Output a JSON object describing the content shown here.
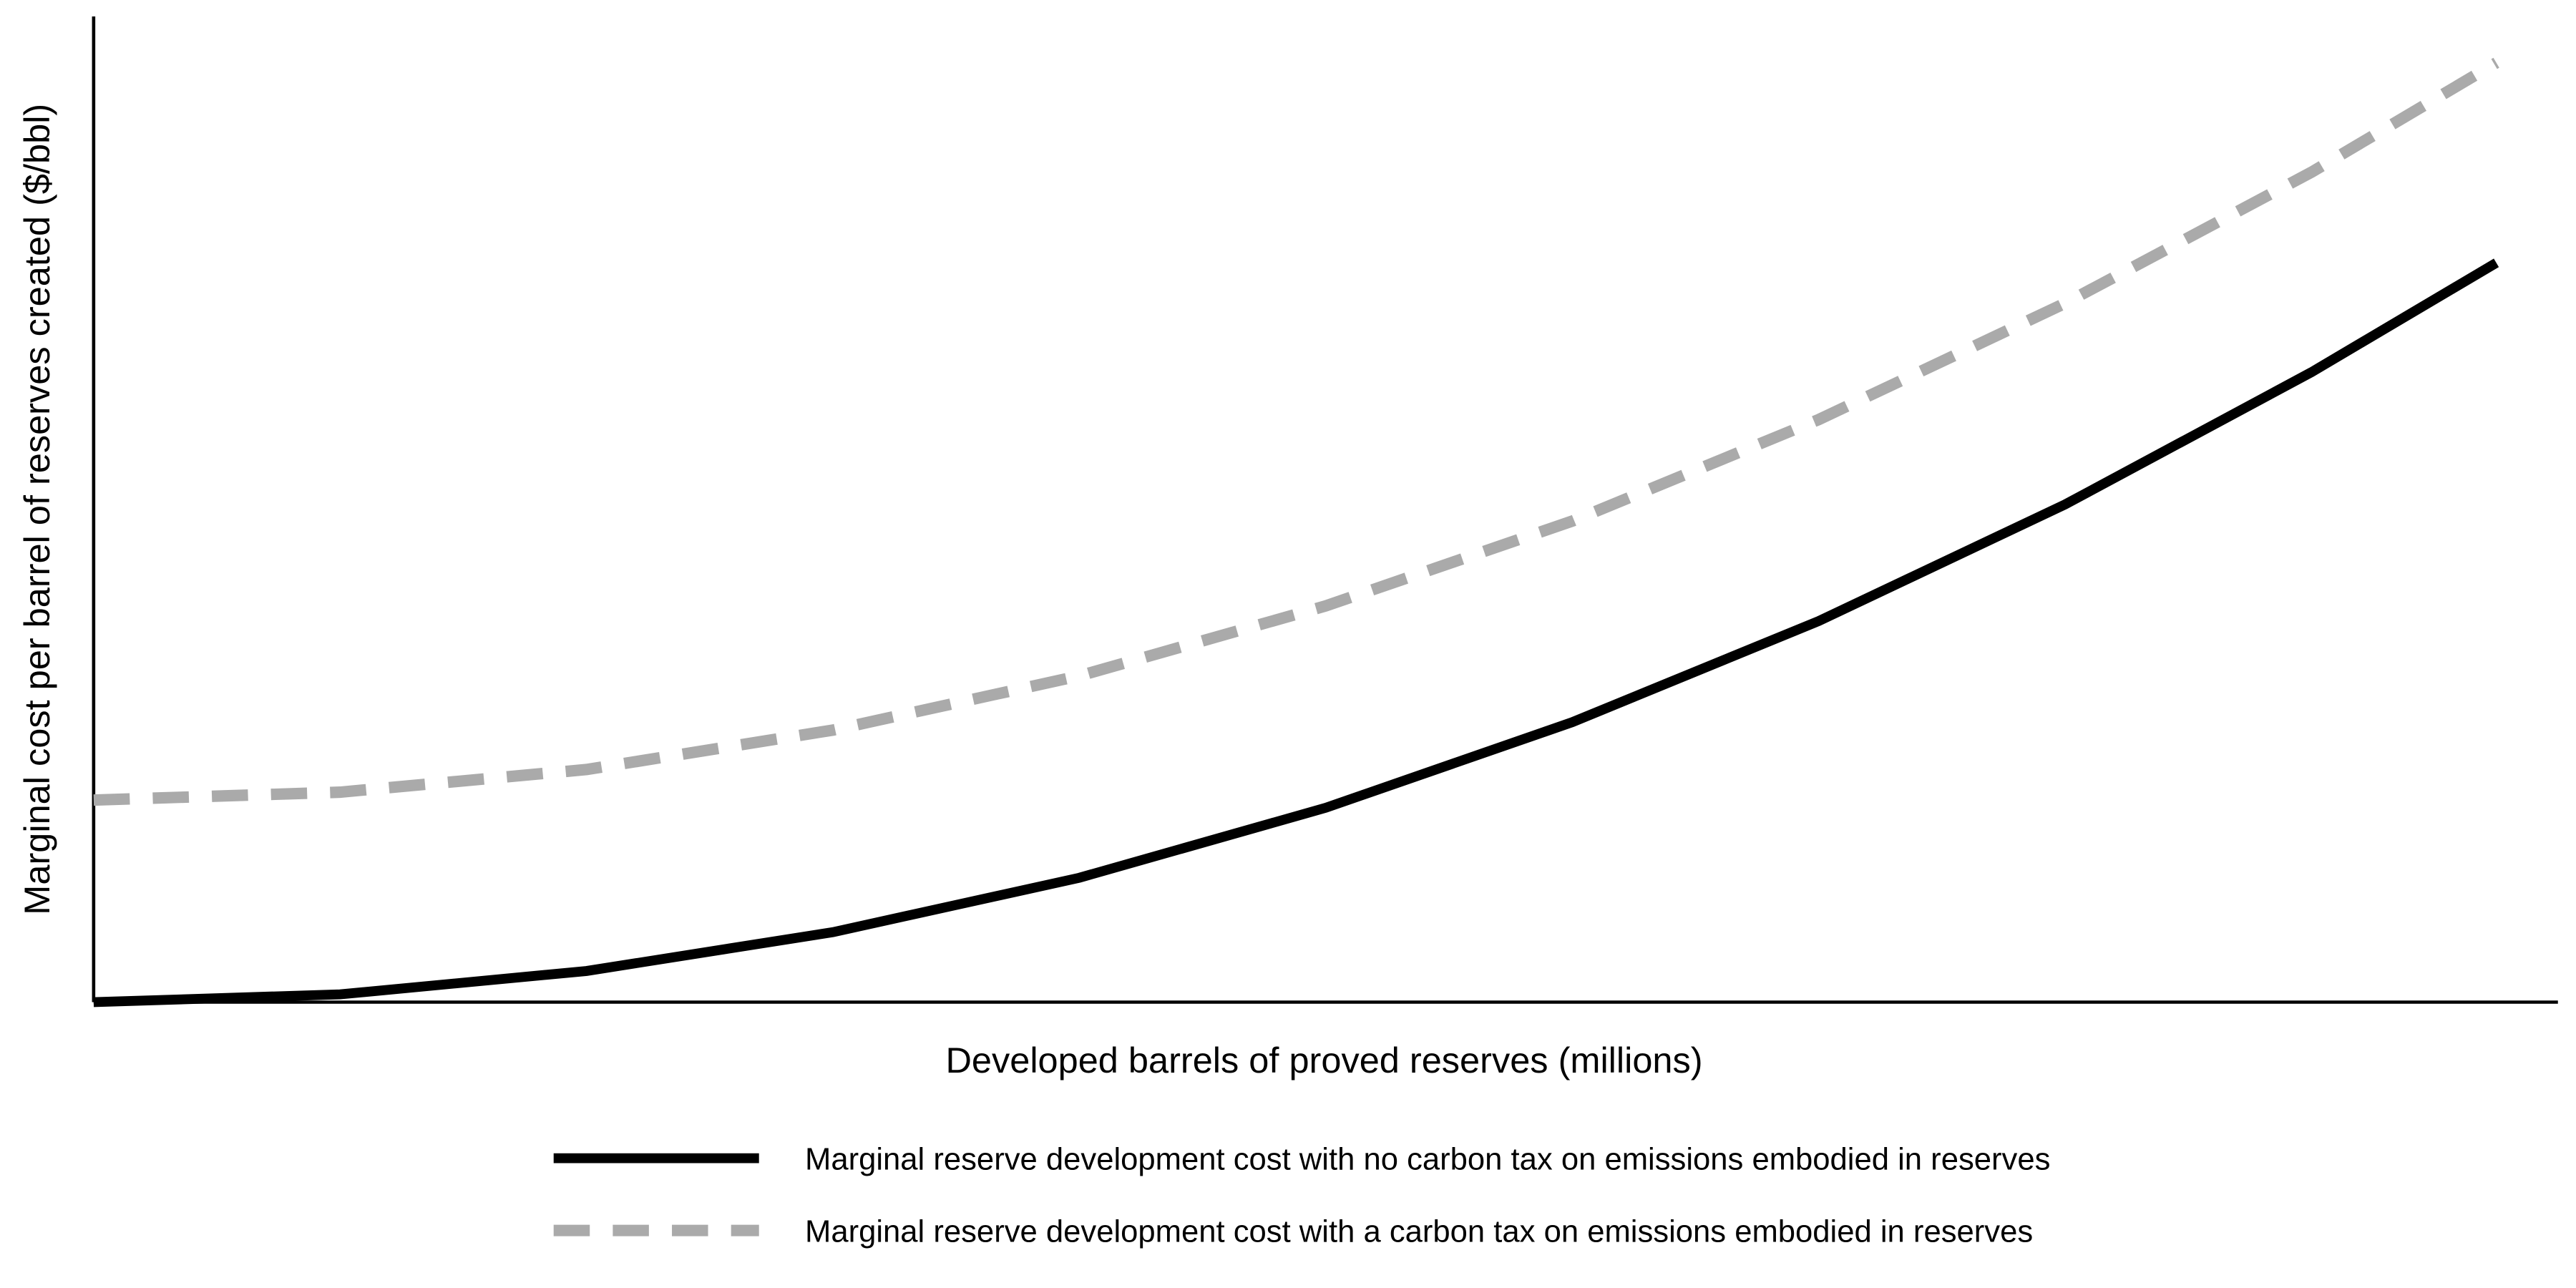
{
  "chart_data": {
    "type": "line",
    "x_label": "Developed barrels of proved reserves (millions)",
    "y_label": "Marginal cost per barrel of reserves created ($/bbl)",
    "x": [
      0,
      10,
      20,
      30,
      40,
      50,
      60,
      70,
      80,
      90,
      97.5
    ],
    "series": [
      {
        "name": "Marginal reserve development cost with no carbon tax on emissions embodied in reserves",
        "color": "#000000",
        "dash": false,
        "values": [
          0,
          0.79,
          3.16,
          7.1,
          12.62,
          19.72,
          28.4,
          38.66,
          50.49,
          63.91,
          75
        ]
      },
      {
        "name": "Marginal reserve development cost with a carbon tax on emissions embodied in reserves",
        "color": "#aaaaaa",
        "dash": true,
        "values": [
          20.5,
          21.3,
          23.6,
          27.6,
          33.1,
          40.2,
          48.8,
          59.1,
          70.9,
          84.2,
          95.3
        ]
      }
    ],
    "xlim": [
      0,
      100
    ],
    "ylim": [
      0,
      100
    ],
    "grid": false,
    "legend": "bottom"
  }
}
